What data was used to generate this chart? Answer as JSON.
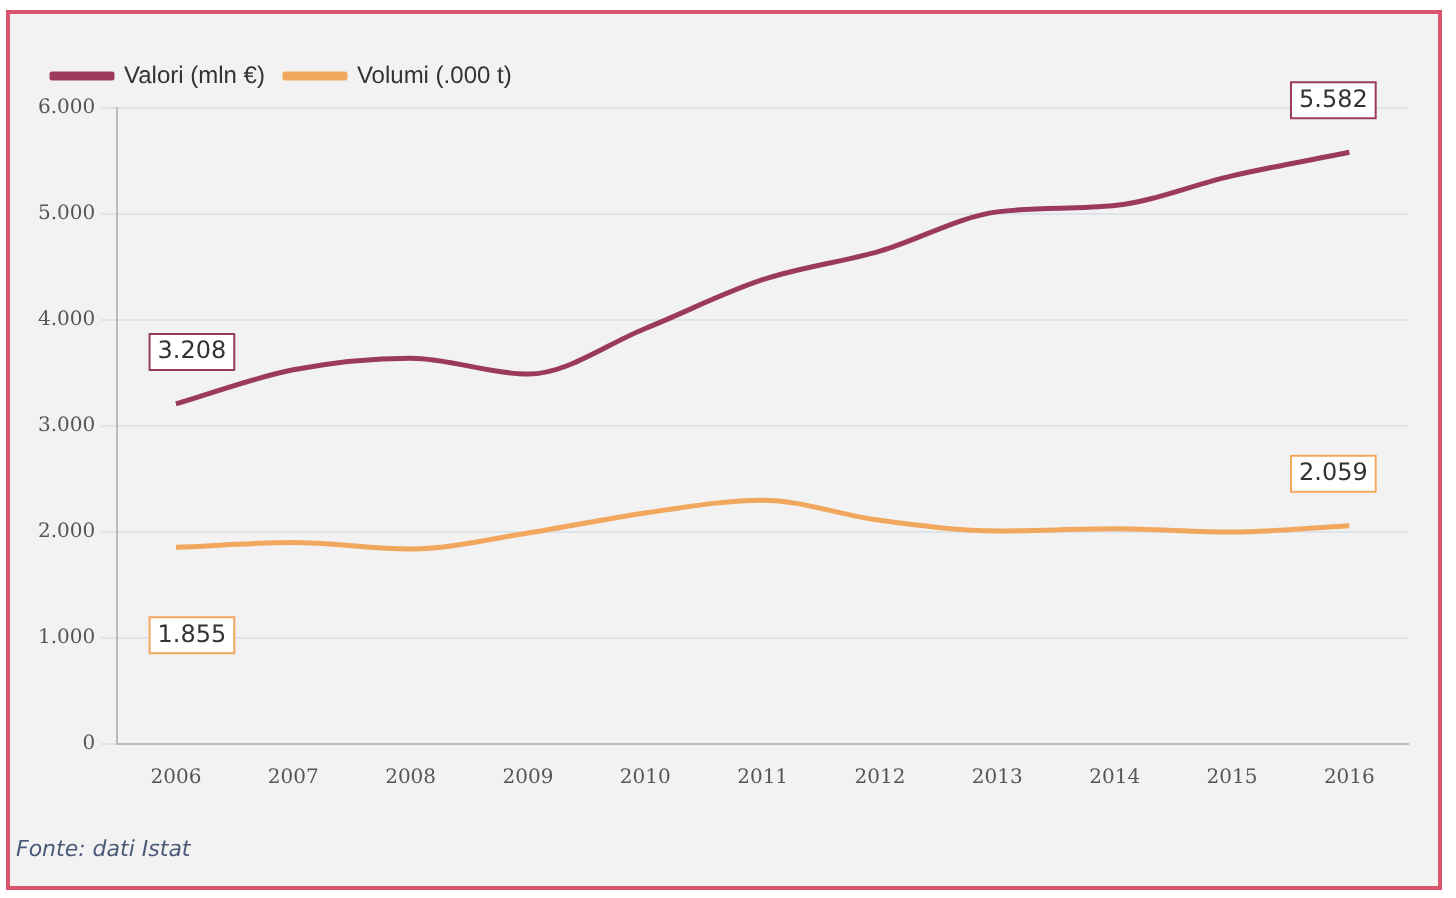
{
  "chart_data": {
    "type": "line",
    "categories": [
      "2006",
      "2007",
      "2008",
      "2009",
      "2010",
      "2011",
      "2012",
      "2013",
      "2014",
      "2015",
      "2016"
    ],
    "series": [
      {
        "name": "Valori (mln €)",
        "color": "#9b3a5c",
        "values": [
          3208,
          3530,
          3640,
          3490,
          3920,
          4380,
          4650,
          5020,
          5080,
          5360,
          5582
        ],
        "value_labels": [
          "3.208",
          null,
          null,
          null,
          null,
          null,
          null,
          null,
          null,
          null,
          "5.582"
        ]
      },
      {
        "name": "Volumi (.000 t)",
        "color": "#f2a75e",
        "values": [
          1855,
          1900,
          1840,
          1990,
          2180,
          2300,
          2110,
          2010,
          2030,
          2000,
          2059
        ],
        "value_labels": [
          "1.855",
          null,
          null,
          null,
          null,
          null,
          null,
          null,
          null,
          null,
          "2.059"
        ]
      }
    ],
    "ylim": [
      0,
      6000
    ],
    "yticks": [
      {
        "value": 0,
        "label": "0"
      },
      {
        "value": 1000,
        "label": "1.000"
      },
      {
        "value": 2000,
        "label": "2.000"
      },
      {
        "value": 3000,
        "label": "3.000"
      },
      {
        "value": 4000,
        "label": "4.000"
      },
      {
        "value": 5000,
        "label": "5.000"
      },
      {
        "value": 6000,
        "label": "6.000"
      }
    ],
    "grid": "y",
    "legend": "top left",
    "marker": "none",
    "line_style": "solid",
    "annotations": [
      "Fonte: dati Istat"
    ]
  }
}
